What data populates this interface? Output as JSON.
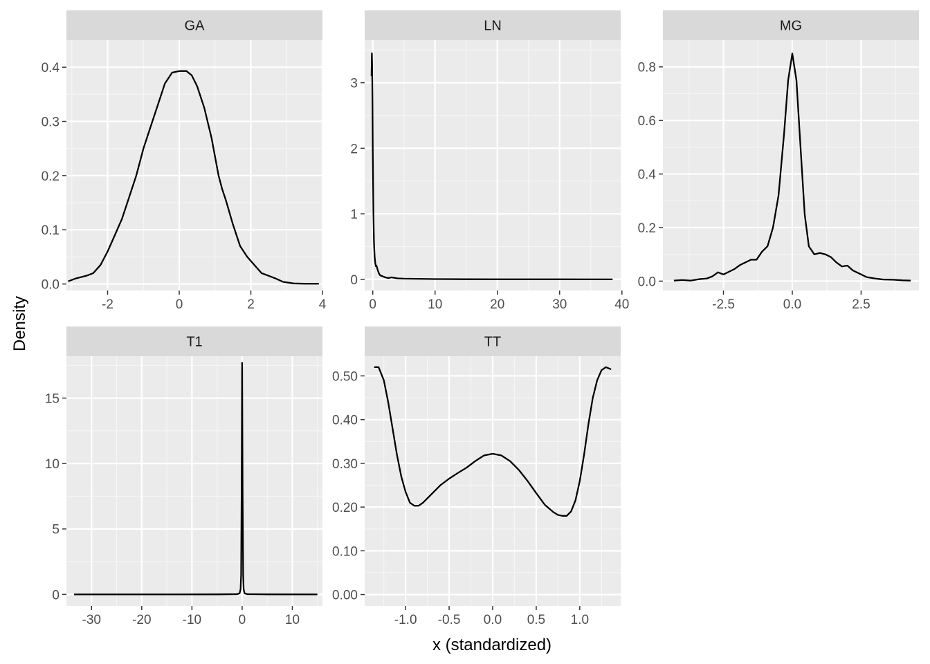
{
  "chart_data": {
    "type": "line",
    "xlabel": "x (standardized)",
    "ylabel": "Density",
    "grid": true,
    "panels": [
      {
        "name": "GA",
        "xlim": [
          -3.15,
          4.0
        ],
        "ylim": [
          -0.012,
          0.45
        ],
        "xticks": [
          {
            "v": -2,
            "label": "-2"
          },
          {
            "v": 0,
            "label": "0"
          },
          {
            "v": 2,
            "label": "2"
          },
          {
            "v": 4,
            "label": "4"
          }
        ],
        "yticks": [
          {
            "v": 0,
            "label": "0.0"
          },
          {
            "v": 0.1,
            "label": "0.1"
          },
          {
            "v": 0.2,
            "label": "0.2"
          },
          {
            "v": 0.3,
            "label": "0.3"
          },
          {
            "v": 0.4,
            "label": "0.4"
          }
        ],
        "x": [
          -3.1,
          -2.9,
          -2.6,
          -2.4,
          -2.2,
          -2.0,
          -1.8,
          -1.6,
          -1.4,
          -1.2,
          -1.0,
          -0.8,
          -0.6,
          -0.4,
          -0.2,
          0.0,
          0.2,
          0.35,
          0.5,
          0.7,
          0.9,
          1.1,
          1.2,
          1.3,
          1.5,
          1.7,
          1.9,
          2.1,
          2.3,
          2.5,
          2.7,
          2.9,
          3.2,
          3.5,
          3.9
        ],
        "y": [
          0.005,
          0.01,
          0.015,
          0.02,
          0.035,
          0.06,
          0.09,
          0.12,
          0.16,
          0.2,
          0.25,
          0.29,
          0.33,
          0.37,
          0.39,
          0.393,
          0.393,
          0.385,
          0.365,
          0.325,
          0.27,
          0.2,
          0.175,
          0.155,
          0.11,
          0.07,
          0.05,
          0.035,
          0.02,
          0.015,
          0.01,
          0.004,
          0.001,
          0.0005,
          0.0005
        ]
      },
      {
        "name": "LN",
        "xlim": [
          -1.3,
          39.8
        ],
        "ylim": [
          -0.17,
          3.65
        ],
        "xticks": [
          {
            "v": 0,
            "label": "0"
          },
          {
            "v": 10,
            "label": "10"
          },
          {
            "v": 20,
            "label": "20"
          },
          {
            "v": 30,
            "label": "30"
          },
          {
            "v": 40,
            "label": "40"
          }
        ],
        "yticks": [
          {
            "v": 0,
            "label": "0"
          },
          {
            "v": 1,
            "label": "1"
          },
          {
            "v": 2,
            "label": "2"
          },
          {
            "v": 3,
            "label": "3"
          }
        ],
        "x": [
          -0.2,
          -0.15,
          -0.1,
          -0.05,
          0.0,
          0.05,
          0.1,
          0.15,
          0.2,
          0.3,
          0.4,
          0.5,
          0.6,
          0.8,
          1.0,
          1.2,
          1.5,
          2.0,
          2.5,
          3.0,
          4.0,
          5.0,
          7.0,
          10.0,
          15.0,
          20.0,
          30.0,
          38.5
        ],
        "y": [
          3.1,
          3.45,
          3.25,
          2.7,
          2.0,
          1.45,
          1.05,
          0.75,
          0.55,
          0.35,
          0.25,
          0.2,
          0.21,
          0.14,
          0.09,
          0.06,
          0.05,
          0.03,
          0.02,
          0.03,
          0.015,
          0.01,
          0.008,
          0.004,
          0.002,
          0.001,
          0.0005,
          0.0003
        ]
      },
      {
        "name": "MG",
        "xlim": [
          -4.7,
          4.6
        ],
        "ylim": [
          -0.035,
          0.9
        ],
        "xticks": [
          {
            "v": -2.5,
            "label": "-2.5"
          },
          {
            "v": 0,
            "label": "0.0"
          },
          {
            "v": 2.5,
            "label": "2.5"
          }
        ],
        "yticks": [
          {
            "v": 0,
            "label": "0.0"
          },
          {
            "v": 0.2,
            "label": "0.2"
          },
          {
            "v": 0.4,
            "label": "0.4"
          },
          {
            "v": 0.6,
            "label": "0.6"
          },
          {
            "v": 0.8,
            "label": "0.8"
          }
        ],
        "x": [
          -4.3,
          -4.0,
          -3.7,
          -3.4,
          -3.1,
          -2.9,
          -2.7,
          -2.5,
          -2.3,
          -2.1,
          -1.9,
          -1.7,
          -1.5,
          -1.3,
          -1.1,
          -0.9,
          -0.7,
          -0.5,
          -0.3,
          -0.15,
          0.0,
          0.15,
          0.3,
          0.45,
          0.6,
          0.8,
          1.0,
          1.2,
          1.4,
          1.6,
          1.8,
          2.0,
          2.2,
          2.4,
          2.7,
          3.0,
          3.3,
          3.7,
          4.0,
          4.3
        ],
        "y": [
          0.002,
          0.004,
          0.002,
          0.007,
          0.01,
          0.018,
          0.033,
          0.025,
          0.035,
          0.045,
          0.06,
          0.07,
          0.08,
          0.08,
          0.11,
          0.13,
          0.2,
          0.32,
          0.55,
          0.75,
          0.85,
          0.75,
          0.5,
          0.25,
          0.13,
          0.1,
          0.105,
          0.1,
          0.09,
          0.07,
          0.055,
          0.058,
          0.04,
          0.03,
          0.015,
          0.01,
          0.006,
          0.005,
          0.003,
          0.002
        ]
      },
      {
        "name": "T1",
        "xlim": [
          -35.0,
          16.0
        ],
        "ylim": [
          -0.88,
          18.2
        ],
        "xticks": [
          {
            "v": -30,
            "label": "-30"
          },
          {
            "v": -20,
            "label": "-20"
          },
          {
            "v": -10,
            "label": "-10"
          },
          {
            "v": 0,
            "label": "0"
          },
          {
            "v": 10,
            "label": "10"
          }
        ],
        "yticks": [
          {
            "v": 0,
            "label": "0"
          },
          {
            "v": 5,
            "label": "5"
          },
          {
            "v": 10,
            "label": "10"
          },
          {
            "v": 15,
            "label": "15"
          }
        ],
        "x": [
          -33.5,
          -20.0,
          -5.0,
          -1.0,
          -0.5,
          -0.3,
          -0.2,
          -0.1,
          0.0,
          0.1,
          0.2,
          0.3,
          0.5,
          1.0,
          5.0,
          15.0
        ],
        "y": [
          0.0,
          0.0,
          0.005,
          0.02,
          0.08,
          0.4,
          1.5,
          8.0,
          17.7,
          8.0,
          1.5,
          0.4,
          0.08,
          0.02,
          0.005,
          0.0
        ]
      },
      {
        "name": "TT",
        "xlim": [
          -1.47,
          1.47
        ],
        "ylim": [
          -0.026,
          0.545
        ],
        "xticks": [
          {
            "v": -1.0,
            "label": "-1.0"
          },
          {
            "v": -0.5,
            "label": "-0.5"
          },
          {
            "v": 0.0,
            "label": "0.0"
          },
          {
            "v": 0.5,
            "label": "0.5"
          },
          {
            "v": 1.0,
            "label": "1.0"
          }
        ],
        "yticks": [
          {
            "v": 0,
            "label": "0.00"
          },
          {
            "v": 0.1,
            "label": "0.10"
          },
          {
            "v": 0.2,
            "label": "0.20"
          },
          {
            "v": 0.3,
            "label": "0.30"
          },
          {
            "v": 0.4,
            "label": "0.40"
          },
          {
            "v": 0.5,
            "label": "0.50"
          }
        ],
        "x": [
          -1.36,
          -1.31,
          -1.25,
          -1.2,
          -1.15,
          -1.1,
          -1.05,
          -1.0,
          -0.95,
          -0.9,
          -0.85,
          -0.8,
          -0.7,
          -0.6,
          -0.5,
          -0.4,
          -0.3,
          -0.2,
          -0.1,
          0.0,
          0.1,
          0.2,
          0.3,
          0.4,
          0.5,
          0.6,
          0.7,
          0.75,
          0.8,
          0.85,
          0.9,
          0.95,
          1.0,
          1.05,
          1.1,
          1.15,
          1.2,
          1.25,
          1.3,
          1.36
        ],
        "y": [
          0.52,
          0.52,
          0.49,
          0.44,
          0.38,
          0.32,
          0.27,
          0.235,
          0.21,
          0.203,
          0.203,
          0.21,
          0.23,
          0.25,
          0.265,
          0.278,
          0.29,
          0.305,
          0.318,
          0.322,
          0.318,
          0.305,
          0.285,
          0.26,
          0.232,
          0.205,
          0.188,
          0.182,
          0.18,
          0.18,
          0.19,
          0.215,
          0.26,
          0.32,
          0.39,
          0.45,
          0.49,
          0.513,
          0.52,
          0.515
        ]
      }
    ]
  }
}
